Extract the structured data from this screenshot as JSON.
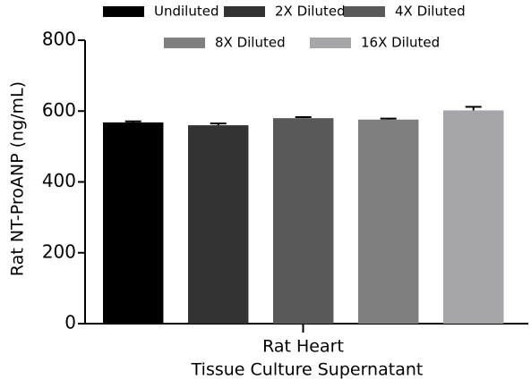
{
  "chart_data": {
    "type": "bar",
    "y_label": "Rat NT-ProANP (ng/mL)",
    "categories": [
      "Rat Heart"
    ],
    "x_label": "Tissue Culture Supernatant",
    "series": [
      {
        "name": "Undiluted",
        "color": "#000000",
        "values": [
          568
        ],
        "errors": [
          3
        ]
      },
      {
        "name": "2X Diluted",
        "color": "#333333",
        "values": [
          560
        ],
        "errors": [
          5
        ]
      },
      {
        "name": "4X Diluted",
        "color": "#595959",
        "values": [
          580
        ],
        "errors": [
          3
        ]
      },
      {
        "name": "8X Diluted",
        "color": "#7f7f7f",
        "values": [
          576
        ],
        "errors": [
          3
        ]
      },
      {
        "name": "16X Diluted",
        "color": "#a6a6aa",
        "values": [
          602
        ],
        "errors": [
          10
        ]
      }
    ],
    "ylim": [
      0,
      800
    ],
    "yticks": [
      0,
      200,
      400,
      600,
      800
    ],
    "grid": false
  }
}
